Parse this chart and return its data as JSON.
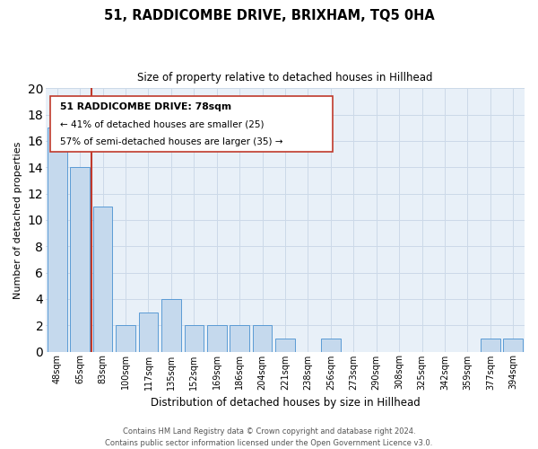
{
  "title": "51, RADDICOMBE DRIVE, BRIXHAM, TQ5 0HA",
  "subtitle": "Size of property relative to detached houses in Hillhead",
  "xlabel": "Distribution of detached houses by size in Hillhead",
  "ylabel": "Number of detached properties",
  "categories": [
    "48sqm",
    "65sqm",
    "83sqm",
    "100sqm",
    "117sqm",
    "135sqm",
    "152sqm",
    "169sqm",
    "186sqm",
    "204sqm",
    "221sqm",
    "238sqm",
    "256sqm",
    "273sqm",
    "290sqm",
    "308sqm",
    "325sqm",
    "342sqm",
    "359sqm",
    "377sqm",
    "394sqm"
  ],
  "values": [
    17,
    14,
    11,
    2,
    3,
    4,
    2,
    2,
    2,
    2,
    1,
    0,
    1,
    0,
    0,
    0,
    0,
    0,
    0,
    1,
    1
  ],
  "ylim": [
    0,
    20
  ],
  "yticks": [
    0,
    2,
    4,
    6,
    8,
    10,
    12,
    14,
    16,
    18,
    20
  ],
  "bar_color": "#c5d9ed",
  "bar_edge_color": "#5b9bd5",
  "property_line_color": "#c0392b",
  "annotation_title": "51 RADDICOMBE DRIVE: 78sqm",
  "annotation_line1": "← 41% of detached houses are smaller (25)",
  "annotation_line2": "57% of semi-detached houses are larger (35) →",
  "annotation_box_color": "#ffffff",
  "annotation_box_edge": "#c0392b",
  "footer_line1": "Contains HM Land Registry data © Crown copyright and database right 2024.",
  "footer_line2": "Contains public sector information licensed under the Open Government Licence v3.0.",
  "bg_color": "#ffffff",
  "ax_bg_color": "#e8f0f8",
  "grid_color": "#ccd9e8"
}
